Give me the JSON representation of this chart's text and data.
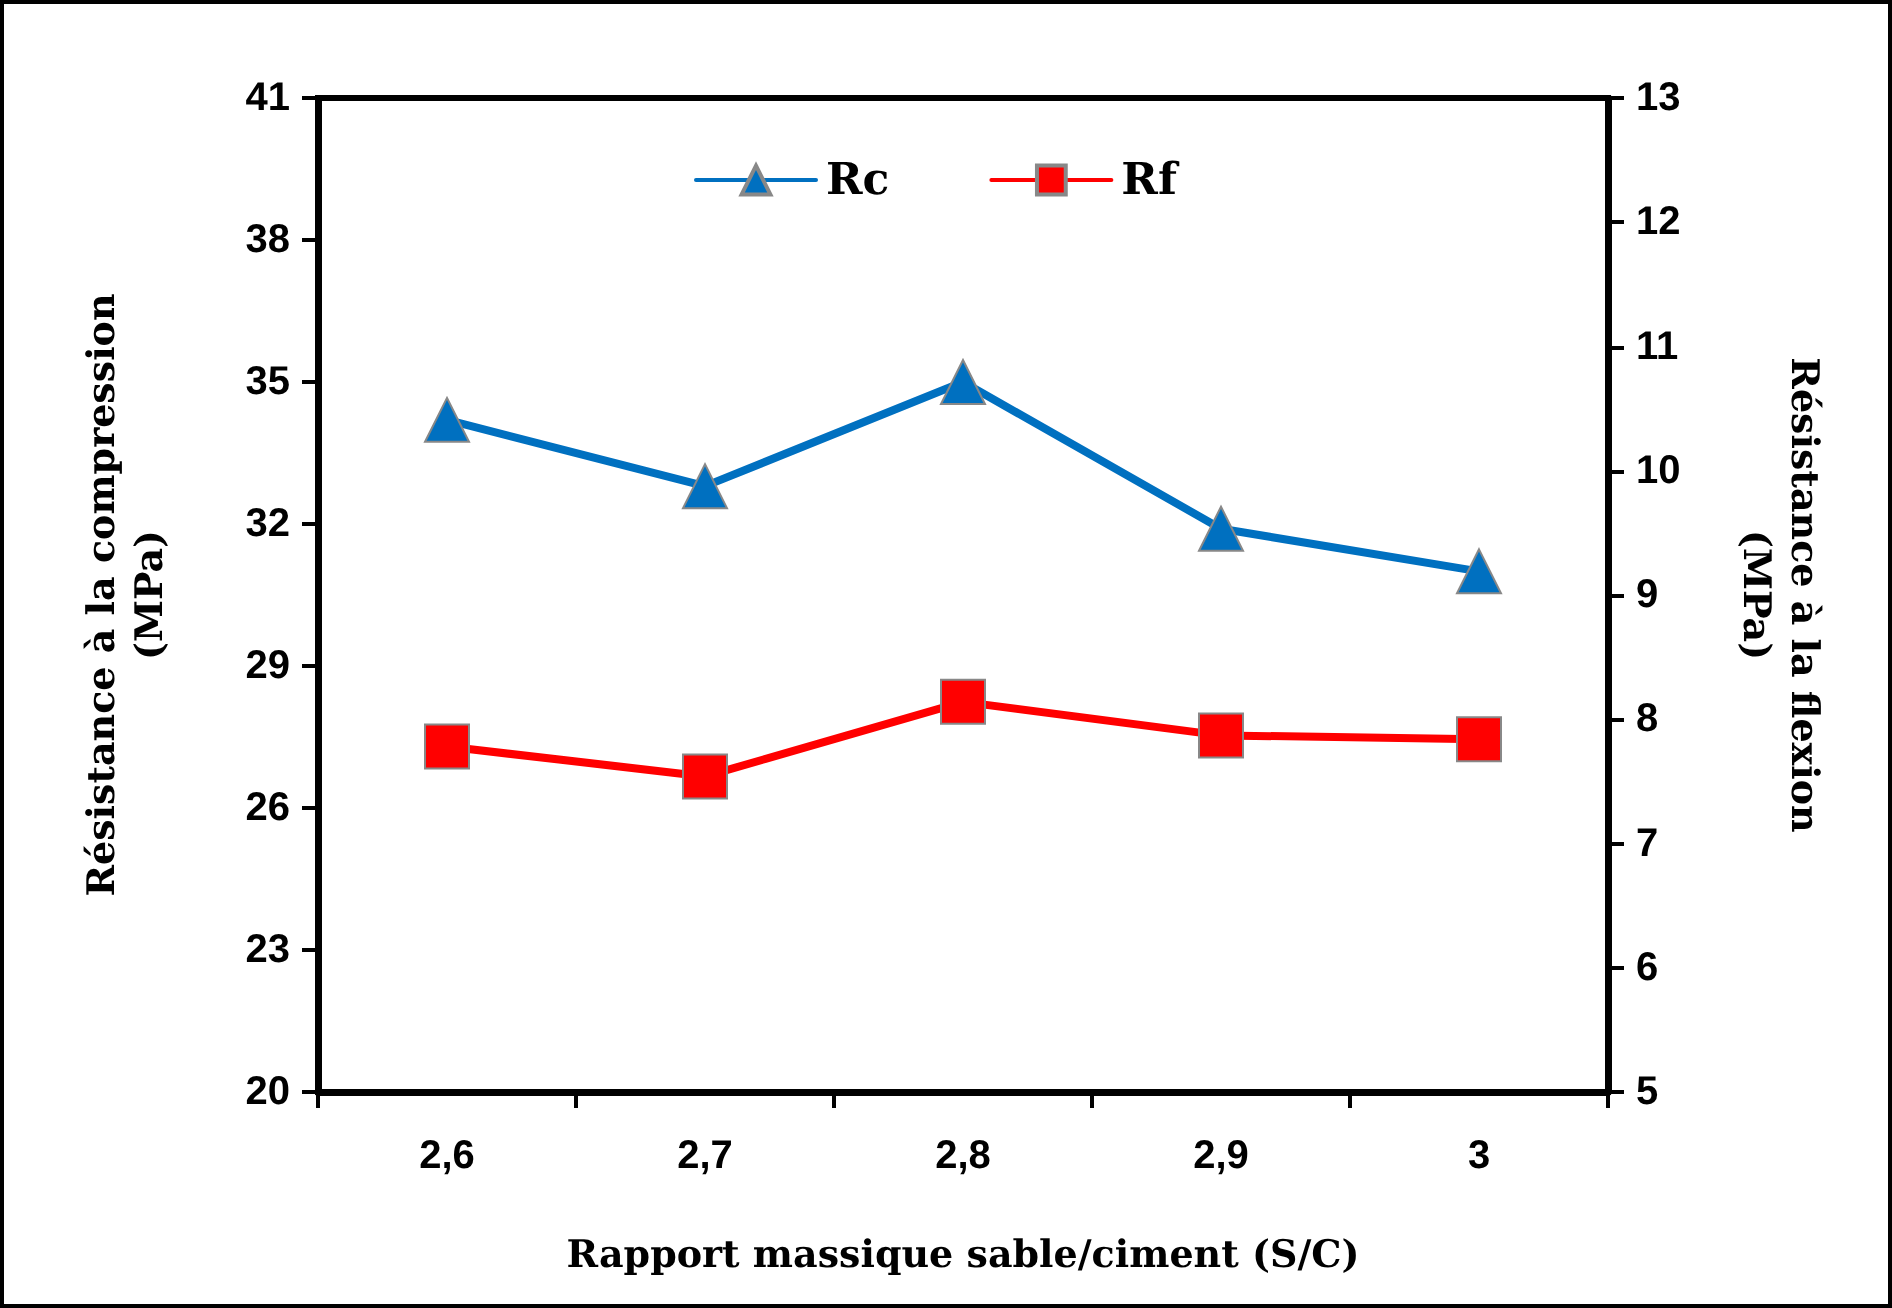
{
  "chart_data": {
    "type": "line",
    "xlabel": "Rapport massique sable/ciment (S/C)",
    "ylabel": "Résistance à la compression\n(MPa)",
    "y2label": "Résistance à la flexion\n(MPa)",
    "categories": [
      "2,6",
      "2,7",
      "2,8",
      "2,9",
      "3"
    ],
    "series": [
      {
        "name": "Rc",
        "color": "#0070c0",
        "marker": "triangle",
        "values": [
          34.2,
          32.8,
          35.0,
          31.9,
          31.0
        ]
      },
      {
        "name": "Rf",
        "color": "#ff0000",
        "marker": "square",
        "axis": "y2",
        "values": [
          7.78,
          7.54,
          8.14,
          7.87,
          7.84
        ]
      }
    ],
    "ylim": [
      20,
      41
    ],
    "yticks": [
      20,
      23,
      26,
      29,
      32,
      35,
      38,
      41
    ],
    "y2lim": [
      5,
      13
    ],
    "y2ticks": [
      5,
      6,
      7,
      8,
      9,
      10,
      11,
      12,
      13
    ],
    "grid": false,
    "legend": "top",
    "line_style": "solid"
  }
}
